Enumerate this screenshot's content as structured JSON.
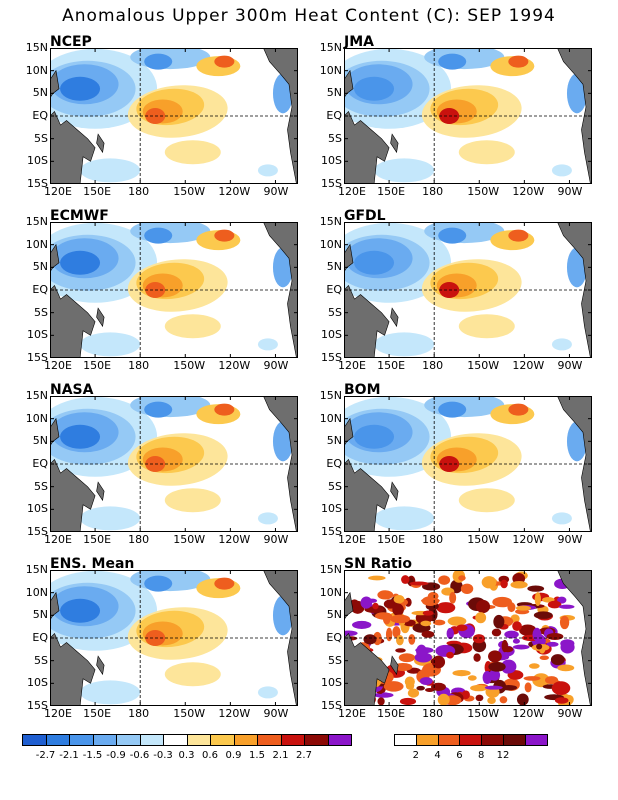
{
  "title": "Anomalous Upper 300m Heat Content (C): SEP 1994",
  "panels": [
    {
      "id": "ncep",
      "label": "NCEP"
    },
    {
      "id": "jma",
      "label": "JMA"
    },
    {
      "id": "ecmwf",
      "label": "ECMWF"
    },
    {
      "id": "gfdl",
      "label": "GFDL"
    },
    {
      "id": "nasa",
      "label": "NASA"
    },
    {
      "id": "bom",
      "label": "BOM"
    },
    {
      "id": "ens",
      "label": "ENS. Mean"
    },
    {
      "id": "sn",
      "label": "SN Ratio"
    }
  ],
  "lat_labels": [
    "15N",
    "10N",
    "5N",
    "EQ",
    "5S",
    "10S",
    "15S"
  ],
  "lon_labels": [
    "120E",
    "150E",
    "180",
    "150W",
    "120W",
    "90W"
  ],
  "anomaly_colorbar": {
    "ticks": [
      "-2.7",
      "-2.1",
      "-1.5",
      "-0.9",
      "-0.6",
      "-0.3",
      "0.3",
      "0.6",
      "0.9",
      "1.5",
      "2.1",
      "2.7"
    ],
    "colors": [
      "#1f5fd1",
      "#2f7de0",
      "#4a95ea",
      "#6aabf0",
      "#95c9f5",
      "#c4e7fb",
      "#ffffff",
      "#fde59a",
      "#fcc94e",
      "#f8a02a",
      "#ee5e1e",
      "#c9120e",
      "#8c0a06",
      "#8b16c9"
    ]
  },
  "sn_colorbar": {
    "ticks": [
      "2",
      "4",
      "6",
      "8",
      "12"
    ],
    "colors": [
      "#ffffff",
      "#f8a02a",
      "#ee5e1e",
      "#c9120e",
      "#8c0a06",
      "#6b0b08",
      "#8b16c9"
    ]
  },
  "colors": {
    "land": "#6e6e6e",
    "frame": "#000000"
  }
}
